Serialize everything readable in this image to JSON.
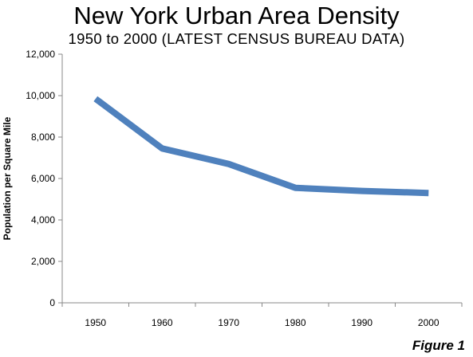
{
  "title": "New York Urban Area Density",
  "subtitle": "1950 to 2000 (LATEST CENSUS BUREAU DATA)",
  "figure_label": "Figure 1",
  "colors": {
    "line": "#4f81bd",
    "axis": "#888888"
  },
  "chart_data": {
    "type": "line",
    "title": "New York Urban Area Density",
    "subtitle": "1950 to 2000 (LATEST CENSUS BUREAU DATA)",
    "xlabel": "",
    "ylabel": "Population per Square Mile",
    "categories": [
      "1950",
      "1960",
      "1970",
      "1980",
      "1990",
      "2000"
    ],
    "series": [
      {
        "values": [
          9850,
          7450,
          6700,
          5550,
          5400,
          5300
        ]
      }
    ],
    "ylim": [
      0,
      12000
    ],
    "yticks": [
      "0",
      "2,000",
      "4,000",
      "6,000",
      "8,000",
      "10,000",
      "12,000"
    ],
    "ytick_values": [
      0,
      2000,
      4000,
      6000,
      8000,
      10000,
      12000
    ],
    "grid": false,
    "legend": "none"
  }
}
